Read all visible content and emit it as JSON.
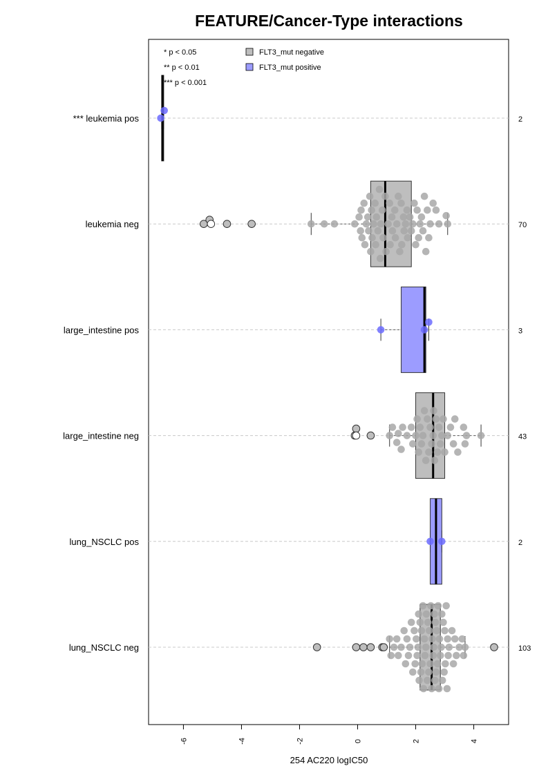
{
  "chart_data": {
    "type": "box",
    "title": "FEATURE/Cancer-Type interactions",
    "xlabel": "254 AC220 logIC50",
    "xlim": [
      -7.2,
      5.2
    ],
    "x_ticks": [
      -6,
      -4,
      -2,
      0,
      2,
      4
    ],
    "x_tick_labels": [
      "-6",
      "-4",
      "-2",
      "0",
      "2",
      "4"
    ],
    "orientation": "horizontal",
    "grid": "horizontal dashed line through each row",
    "significance_legend": [
      "* p < 0.05",
      "** p < 0.01",
      "*** p < 0.001"
    ],
    "legend": {
      "placement": "top-left",
      "entries": [
        {
          "label": "FLT3_mut negative",
          "color": "#bebebe"
        },
        {
          "label": "FLT3_mut positive",
          "color": "#9c9cff"
        }
      ]
    },
    "colors": {
      "negative_box": "#bebebe",
      "positive_box": "#9c9cff",
      "negative_point": "#a8a8a8",
      "positive_point": "#6b6bff"
    },
    "rows": [
      {
        "label": "*** leukemia pos",
        "group": "positive",
        "n": "2",
        "box": {
          "whisker_low": -6.75,
          "q1": -6.75,
          "median": -6.72,
          "q3": -6.7,
          "whisker_high": -6.68
        },
        "points": [
          {
            "x": -6.78,
            "dy": 0
          },
          {
            "x": -6.66,
            "dy": -11
          }
        ],
        "outliers": []
      },
      {
        "label": "leukemia neg",
        "group": "negative",
        "n": "70",
        "box": {
          "whisker_low": -1.6,
          "q1": 0.45,
          "median": 0.95,
          "q3": 1.85,
          "whisker_high": 3.1
        },
        "points": [
          {
            "x": -1.6,
            "dy": 0
          },
          {
            "x": -1.15,
            "dy": 0
          },
          {
            "x": -0.8,
            "dy": 0
          },
          {
            "x": -0.1,
            "dy": 0
          },
          {
            "x": 0.05,
            "dy": -10
          },
          {
            "x": 0.1,
            "dy": 10
          },
          {
            "x": 0.12,
            "dy": -20
          },
          {
            "x": 0.15,
            "dy": 20
          },
          {
            "x": 0.22,
            "dy": -30
          },
          {
            "x": 0.25,
            "dy": 30
          },
          {
            "x": 0.3,
            "dy": 0
          },
          {
            "x": 0.35,
            "dy": -10
          },
          {
            "x": 0.38,
            "dy": 10
          },
          {
            "x": 0.42,
            "dy": -40
          },
          {
            "x": 0.45,
            "dy": 40
          },
          {
            "x": 0.48,
            "dy": -20
          },
          {
            "x": 0.5,
            "dy": 20
          },
          {
            "x": 0.55,
            "dy": 0
          },
          {
            "x": 0.6,
            "dy": -30
          },
          {
            "x": 0.62,
            "dy": 30
          },
          {
            "x": 0.65,
            "dy": -10
          },
          {
            "x": 0.7,
            "dy": 10
          },
          {
            "x": 0.75,
            "dy": -50
          },
          {
            "x": 0.78,
            "dy": 50
          },
          {
            "x": 0.8,
            "dy": 0
          },
          {
            "x": 0.85,
            "dy": -20
          },
          {
            "x": 0.88,
            "dy": 20
          },
          {
            "x": 0.95,
            "dy": -40
          },
          {
            "x": 0.98,
            "dy": 40
          },
          {
            "x": 1.05,
            "dy": 0
          },
          {
            "x": 1.1,
            "dy": -30
          },
          {
            "x": 1.12,
            "dy": 30
          },
          {
            "x": 1.18,
            "dy": -10
          },
          {
            "x": 1.2,
            "dy": 10
          },
          {
            "x": 1.28,
            "dy": -20
          },
          {
            "x": 1.3,
            "dy": 20
          },
          {
            "x": 1.35,
            "dy": 0
          },
          {
            "x": 1.4,
            "dy": -40
          },
          {
            "x": 1.45,
            "dy": 40
          },
          {
            "x": 1.5,
            "dy": -30
          },
          {
            "x": 1.52,
            "dy": 30
          },
          {
            "x": 1.58,
            "dy": -10
          },
          {
            "x": 1.6,
            "dy": 10
          },
          {
            "x": 1.65,
            "dy": 0
          },
          {
            "x": 1.7,
            "dy": -20
          },
          {
            "x": 1.72,
            "dy": 20
          },
          {
            "x": 1.8,
            "dy": -10
          },
          {
            "x": 1.85,
            "dy": 10
          },
          {
            "x": 1.9,
            "dy": 0
          },
          {
            "x": 1.95,
            "dy": -30
          },
          {
            "x": 2.0,
            "dy": 30
          },
          {
            "x": 2.05,
            "dy": -20
          },
          {
            "x": 2.1,
            "dy": 20
          },
          {
            "x": 2.15,
            "dy": 0
          },
          {
            "x": 2.2,
            "dy": -10
          },
          {
            "x": 2.25,
            "dy": 10
          },
          {
            "x": 2.3,
            "dy": -40
          },
          {
            "x": 2.35,
            "dy": 40
          },
          {
            "x": 2.4,
            "dy": -20
          },
          {
            "x": 2.45,
            "dy": 20
          },
          {
            "x": 2.5,
            "dy": 0
          },
          {
            "x": 2.6,
            "dy": -30
          },
          {
            "x": 2.7,
            "dy": -20
          },
          {
            "x": 2.8,
            "dy": 0
          },
          {
            "x": 3.05,
            "dy": -12
          },
          {
            "x": 3.1,
            "dy": 0
          }
        ],
        "outliers": [
          {
            "x": -5.3,
            "dy": 0,
            "fill": "#bebebe"
          },
          {
            "x": -5.1,
            "dy": -6,
            "fill": "#bebebe"
          },
          {
            "x": -5.05,
            "dy": 0,
            "fill": "#ffffff"
          },
          {
            "x": -4.5,
            "dy": 0,
            "fill": "#bebebe"
          },
          {
            "x": -3.65,
            "dy": 0,
            "fill": "#bebebe"
          }
        ]
      },
      {
        "label": "large_intestine pos",
        "group": "positive",
        "n": "3",
        "box": {
          "whisker_low": 0.8,
          "q1": 1.5,
          "median": 2.3,
          "q3": 2.35,
          "whisker_high": 2.45
        },
        "points": [
          {
            "x": 0.8,
            "dy": 0
          },
          {
            "x": 2.3,
            "dy": 0
          },
          {
            "x": 2.45,
            "dy": -11
          }
        ],
        "outliers": []
      },
      {
        "label": "large_intestine neg",
        "group": "negative",
        "n": "43",
        "box": {
          "whisker_low": 1.1,
          "q1": 2.0,
          "median": 2.6,
          "q3": 3.0,
          "whisker_high": 4.25
        },
        "points": [
          {
            "x": 1.1,
            "dy": 0
          },
          {
            "x": 1.2,
            "dy": -12
          },
          {
            "x": 1.35,
            "dy": 10
          },
          {
            "x": 1.4,
            "dy": -3
          },
          {
            "x": 1.5,
            "dy": 20
          },
          {
            "x": 1.55,
            "dy": -12
          },
          {
            "x": 1.7,
            "dy": 0
          },
          {
            "x": 1.85,
            "dy": -12
          },
          {
            "x": 1.9,
            "dy": 12
          },
          {
            "x": 2.0,
            "dy": 0
          },
          {
            "x": 2.05,
            "dy": -24
          },
          {
            "x": 2.1,
            "dy": 24
          },
          {
            "x": 2.15,
            "dy": -12
          },
          {
            "x": 2.2,
            "dy": 12
          },
          {
            "x": 2.25,
            "dy": 0
          },
          {
            "x": 2.3,
            "dy": -36
          },
          {
            "x": 2.35,
            "dy": 36
          },
          {
            "x": 2.4,
            "dy": -24
          },
          {
            "x": 2.45,
            "dy": 24
          },
          {
            "x": 2.5,
            "dy": -12
          },
          {
            "x": 2.55,
            "dy": 12
          },
          {
            "x": 2.6,
            "dy": 0
          },
          {
            "x": 2.62,
            "dy": -36
          },
          {
            "x": 2.65,
            "dy": 36
          },
          {
            "x": 2.7,
            "dy": -24
          },
          {
            "x": 2.75,
            "dy": 24
          },
          {
            "x": 2.8,
            "dy": -12
          },
          {
            "x": 2.85,
            "dy": 12
          },
          {
            "x": 2.9,
            "dy": 0
          },
          {
            "x": 2.95,
            "dy": -24
          },
          {
            "x": 3.0,
            "dy": 24
          },
          {
            "x": 3.1,
            "dy": 0
          },
          {
            "x": 3.2,
            "dy": -12
          },
          {
            "x": 3.3,
            "dy": 12
          },
          {
            "x": 3.35,
            "dy": -24
          },
          {
            "x": 3.45,
            "dy": 24
          },
          {
            "x": 3.65,
            "dy": -12
          },
          {
            "x": 3.7,
            "dy": 12
          },
          {
            "x": 3.75,
            "dy": 0
          },
          {
            "x": 4.25,
            "dy": 0
          }
        ],
        "outliers": [
          {
            "x": -0.1,
            "dy": 0,
            "fill": "#bebebe"
          },
          {
            "x": -0.05,
            "dy": -10,
            "fill": "#bebebe"
          },
          {
            "x": -0.05,
            "dy": 0,
            "fill": "#ffffff"
          },
          {
            "x": 0.45,
            "dy": 0,
            "fill": "#bebebe"
          }
        ]
      },
      {
        "label": "lung_NSCLC pos",
        "group": "positive",
        "n": "2",
        "box": {
          "whisker_low": 2.5,
          "q1": 2.5,
          "median": 2.7,
          "q3": 2.9,
          "whisker_high": 2.9
        },
        "points": [
          {
            "x": 2.5,
            "dy": 0
          },
          {
            "x": 2.9,
            "dy": 0
          }
        ],
        "outliers": []
      },
      {
        "label": "lung_NSCLC neg",
        "group": "negative",
        "n": "103",
        "box": {
          "whisker_low": 1.1,
          "q1": 2.15,
          "median": 2.55,
          "q3": 2.85,
          "whisker_high": 3.7
        },
        "points": [
          {
            "x": 1.1,
            "dy": -12
          },
          {
            "x": 1.15,
            "dy": 12
          },
          {
            "x": 1.25,
            "dy": 0
          },
          {
            "x": 1.35,
            "dy": -12
          },
          {
            "x": 1.4,
            "dy": 12
          },
          {
            "x": 1.5,
            "dy": 0
          },
          {
            "x": 1.6,
            "dy": -24
          },
          {
            "x": 1.65,
            "dy": 24
          },
          {
            "x": 1.7,
            "dy": -12
          },
          {
            "x": 1.75,
            "dy": 12
          },
          {
            "x": 1.8,
            "dy": 0
          },
          {
            "x": 1.85,
            "dy": -36
          },
          {
            "x": 1.9,
            "dy": 36
          },
          {
            "x": 1.95,
            "dy": -24
          },
          {
            "x": 1.98,
            "dy": 24
          },
          {
            "x": 2.02,
            "dy": -12
          },
          {
            "x": 2.05,
            "dy": 12
          },
          {
            "x": 2.08,
            "dy": 0
          },
          {
            "x": 2.1,
            "dy": -48
          },
          {
            "x": 2.12,
            "dy": 48
          },
          {
            "x": 2.15,
            "dy": -36
          },
          {
            "x": 2.18,
            "dy": 36
          },
          {
            "x": 2.2,
            "dy": -24
          },
          {
            "x": 2.22,
            "dy": 24
          },
          {
            "x": 2.25,
            "dy": -60
          },
          {
            "x": 2.27,
            "dy": 60
          },
          {
            "x": 2.3,
            "dy": -12
          },
          {
            "x": 2.32,
            "dy": 12
          },
          {
            "x": 2.35,
            "dy": 0
          },
          {
            "x": 2.37,
            "dy": -48
          },
          {
            "x": 2.4,
            "dy": 48
          },
          {
            "x": 2.42,
            "dy": -36
          },
          {
            "x": 2.45,
            "dy": 36
          },
          {
            "x": 2.47,
            "dy": -24
          },
          {
            "x": 2.5,
            "dy": 24
          },
          {
            "x": 2.52,
            "dy": -60
          },
          {
            "x": 2.55,
            "dy": 60
          },
          {
            "x": 2.57,
            "dy": -12
          },
          {
            "x": 2.6,
            "dy": 12
          },
          {
            "x": 2.62,
            "dy": 0
          },
          {
            "x": 2.64,
            "dy": -48
          },
          {
            "x": 2.66,
            "dy": 48
          },
          {
            "x": 2.68,
            "dy": -36
          },
          {
            "x": 2.7,
            "dy": 36
          },
          {
            "x": 2.72,
            "dy": -24
          },
          {
            "x": 2.75,
            "dy": 24
          },
          {
            "x": 2.77,
            "dy": -60
          },
          {
            "x": 2.8,
            "dy": 60
          },
          {
            "x": 2.82,
            "dy": -12
          },
          {
            "x": 2.85,
            "dy": 12
          },
          {
            "x": 2.88,
            "dy": 0
          },
          {
            "x": 2.9,
            "dy": -48
          },
          {
            "x": 2.92,
            "dy": 48
          },
          {
            "x": 2.95,
            "dy": -36
          },
          {
            "x": 2.98,
            "dy": 36
          },
          {
            "x": 3.0,
            "dy": -24
          },
          {
            "x": 3.02,
            "dy": 24
          },
          {
            "x": 3.05,
            "dy": -60
          },
          {
            "x": 3.08,
            "dy": 60
          },
          {
            "x": 3.1,
            "dy": -12
          },
          {
            "x": 3.12,
            "dy": 12
          },
          {
            "x": 3.15,
            "dy": 0
          },
          {
            "x": 3.25,
            "dy": -24
          },
          {
            "x": 3.3,
            "dy": 24
          },
          {
            "x": 3.35,
            "dy": -12
          },
          {
            "x": 3.4,
            "dy": 12
          },
          {
            "x": 3.5,
            "dy": 0
          },
          {
            "x": 3.6,
            "dy": -12
          },
          {
            "x": 3.65,
            "dy": 12
          },
          {
            "x": 3.7,
            "dy": 0
          }
        ],
        "outliers": [
          {
            "x": -1.4,
            "dy": 0,
            "fill": "#bebebe"
          },
          {
            "x": -0.05,
            "dy": 0,
            "fill": "#bebebe"
          },
          {
            "x": 0.2,
            "dy": 0,
            "fill": "#bebebe"
          },
          {
            "x": 0.45,
            "dy": 0,
            "fill": "#bebebe"
          },
          {
            "x": 0.85,
            "dy": 0,
            "fill": "#bebebe"
          },
          {
            "x": 0.9,
            "dy": 0,
            "fill": "#bebebe"
          },
          {
            "x": 4.7,
            "dy": 0,
            "fill": "#bebebe"
          }
        ]
      }
    ]
  }
}
